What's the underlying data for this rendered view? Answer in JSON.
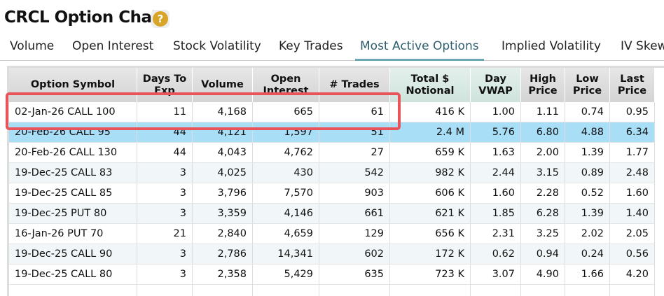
{
  "header": {
    "title": "CRCL Option Chain",
    "help_icon": "?"
  },
  "tabs": {
    "items": [
      "Volume",
      "Open Interest",
      "Stock Volatility",
      "Key Trades",
      "Most Active Options",
      "Implied Volatility",
      "IV Skew"
    ],
    "active": "Most Active Options"
  },
  "table": {
    "columns": [
      "Option Symbol",
      "Days To Exp",
      "Volume",
      "Open Interest",
      "# Trades",
      "Total $ Notional",
      "Day VWAP",
      "High Price",
      "Low Price",
      "Last Price"
    ],
    "rows": [
      [
        "02-Jan-26 CALL 100",
        "11",
        "4,168",
        "665",
        "61",
        "416 K",
        "1.00",
        "1.11",
        "0.74",
        "0.95"
      ],
      [
        "20-Feb-26 CALL 95",
        "44",
        "4,121",
        "1,597",
        "51",
        "2.4 M",
        "5.76",
        "6.80",
        "4.88",
        "6.34"
      ],
      [
        "20-Feb-26 CALL 130",
        "44",
        "4,043",
        "4,762",
        "27",
        "659 K",
        "1.63",
        "2.00",
        "1.39",
        "1.77"
      ],
      [
        "19-Dec-25 CALL 83",
        "3",
        "4,025",
        "430",
        "542",
        "982 K",
        "2.44",
        "3.15",
        "0.89",
        "2.48"
      ],
      [
        "19-Dec-25 CALL 85",
        "3",
        "3,796",
        "7,570",
        "903",
        "606 K",
        "1.60",
        "2.28",
        "0.52",
        "1.60"
      ],
      [
        "19-Dec-25 PUT 80",
        "3",
        "3,359",
        "4,146",
        "661",
        "621 K",
        "1.85",
        "6.28",
        "1.39",
        "1.40"
      ],
      [
        "16-Jan-26 PUT 70",
        "21",
        "2,840",
        "4,659",
        "129",
        "656 K",
        "2.31",
        "3.25",
        "2.02",
        "2.05"
      ],
      [
        "19-Dec-25 CALL 90",
        "3",
        "2,786",
        "14,341",
        "602",
        "172 K",
        "0.62",
        "0.94",
        "0.24",
        "0.56"
      ],
      [
        "19-Dec-25 CALL 80",
        "3",
        "2,358",
        "5,429",
        "635",
        "723 K",
        "3.07",
        "4.90",
        "1.66",
        "4.20"
      ]
    ],
    "highlighted_row": 1,
    "boxed_row": 0
  }
}
